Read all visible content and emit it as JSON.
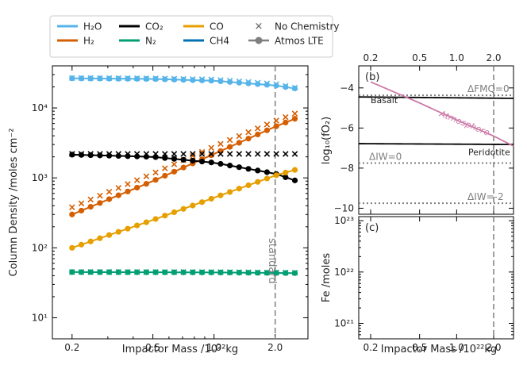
{
  "colors": {
    "H2O": "#56b4e9",
    "H2": "#d55e00",
    "CO2": "#000000",
    "N2": "#009e73",
    "CO": "#e69f00",
    "CH4": "#0072b2",
    "gray": "#7f7f7f",
    "atmos": "#cc79a7"
  },
  "legend": {
    "entries": [
      {
        "key": "H2O",
        "label": "H₂O",
        "kind": "line"
      },
      {
        "key": "H2",
        "label": "H₂",
        "kind": "line"
      },
      {
        "key": "CO2",
        "label": "CO₂",
        "kind": "line"
      },
      {
        "key": "N2",
        "label": "N₂",
        "kind": "line"
      },
      {
        "key": "CO",
        "label": "CO",
        "kind": "line"
      },
      {
        "key": "CH4",
        "label": "CH4",
        "kind": "line"
      },
      {
        "key": "nochem",
        "label": "No Chemistry",
        "kind": "cross"
      },
      {
        "key": "lte",
        "label": "Atmos LTE",
        "kind": "dotline"
      }
    ]
  },
  "chart_data": [
    {
      "id": "main",
      "type": "scatter",
      "xscale": "log",
      "yscale": "log",
      "xlabel": "Impactor Mass /10²²kg",
      "ylabel": "Column Density /moles cm⁻²",
      "xlim": [
        0.16,
        2.9
      ],
      "ylim": [
        5,
        40000
      ],
      "xticks": [
        0.2,
        0.5,
        1.0,
        2.0
      ],
      "xticklabels": [
        "0.2",
        "0.5",
        "1.0",
        "2.0"
      ],
      "yticks": [
        10,
        100,
        1000,
        10000
      ],
      "yticklabels": [
        "10¹",
        "10²",
        "10³",
        "10⁴"
      ],
      "vline": {
        "x": 2.0,
        "label": "standard"
      },
      "n_points": 25,
      "x_range": [
        0.2,
        2.5
      ],
      "series": [
        {
          "name": "H2O",
          "lte_anchors": [
            [
              0.2,
              26500
            ],
            [
              0.5,
              26000
            ],
            [
              1.0,
              24500
            ],
            [
              2.0,
              21000
            ],
            [
              2.5,
              19000
            ]
          ],
          "nochem_anchors": [
            [
              0.2,
              26800
            ],
            [
              0.5,
              26500
            ],
            [
              1.0,
              25500
            ],
            [
              2.0,
              22000
            ],
            [
              2.5,
              19500
            ]
          ]
        },
        {
          "name": "H2",
          "lte_anchors": [
            [
              0.2,
              300
            ],
            [
              0.5,
              900
            ],
            [
              1.0,
              2200
            ],
            [
              2.0,
              5400
            ],
            [
              2.5,
              7000
            ]
          ],
          "nochem_anchors": [
            [
              0.2,
              380
            ],
            [
              0.5,
              1150
            ],
            [
              1.0,
              2800
            ],
            [
              2.0,
              6500
            ],
            [
              2.5,
              8300
            ]
          ]
        },
        {
          "name": "CO2",
          "lte_anchors": [
            [
              0.2,
              2150
            ],
            [
              0.5,
              2000
            ],
            [
              1.0,
              1650
            ],
            [
              2.0,
              1150
            ],
            [
              2.5,
              920
            ]
          ],
          "nochem_anchors": [
            [
              0.2,
              2200
            ],
            [
              1.0,
              2200
            ],
            [
              2.5,
              2200
            ]
          ]
        },
        {
          "name": "CO",
          "lte_anchors": [
            [
              0.2,
              100
            ],
            [
              0.5,
              250
            ],
            [
              1.0,
              520
            ],
            [
              2.0,
              1080
            ],
            [
              2.5,
              1300
            ]
          ]
        },
        {
          "name": "N2",
          "lte_anchors": [
            [
              0.2,
              45
            ],
            [
              1.0,
              44.5
            ],
            [
              2.5,
              43.5
            ]
          ],
          "nochem_anchors": [
            [
              0.2,
              45
            ],
            [
              1.0,
              45
            ],
            [
              2.5,
              44
            ]
          ]
        }
      ]
    },
    {
      "id": "fo2",
      "type": "line",
      "label": "(b)",
      "xscale": "log",
      "xlim": [
        0.16,
        2.9
      ],
      "ylim": [
        -10.3,
        -2.9
      ],
      "ylabel": "log₁₀(fO₂)",
      "yticks": [
        -4,
        -6,
        -8,
        -10
      ],
      "yticklabels": [
        "−4",
        "−6",
        "−8",
        "−10"
      ],
      "xticks": [
        0.2,
        0.5,
        1.0,
        2.0
      ],
      "xticklabels": [
        "0.2",
        "0.5",
        "1.0",
        "2.0"
      ],
      "vline": {
        "x": 2.0
      },
      "lines": [
        {
          "name": "Basalt",
          "anchors": [
            [
              0.16,
              -4.45
            ],
            [
              2.9,
              -4.52
            ]
          ]
        },
        {
          "name": "Peridotite",
          "anchors": [
            [
              0.16,
              -6.78
            ],
            [
              2.9,
              -6.82
            ]
          ]
        },
        {
          "name": "Atmosphere",
          "anchors": [
            [
              0.2,
              -3.7
            ],
            [
              0.5,
              -4.75
            ],
            [
              1.0,
              -5.6
            ],
            [
              2.0,
              -6.4
            ],
            [
              2.9,
              -6.9
            ]
          ]
        }
      ],
      "buffers": [
        {
          "name": "ΔFMQ=0",
          "y": -4.37
        },
        {
          "name": "ΔIW=0",
          "y": -7.75
        },
        {
          "name": "ΔIW=-2",
          "y": -9.75
        }
      ]
    },
    {
      "id": "fe",
      "type": "scatter",
      "label": "(c)",
      "xscale": "log",
      "yscale": "log",
      "xlim": [
        0.16,
        2.9
      ],
      "ylim": [
        5e+20,
        1.2e+23
      ],
      "xlabel": "Impactor Mass /10²²kg",
      "ylabel": "Fe /moles",
      "yticks": [
        1e+21,
        1e+22,
        1e+23
      ],
      "yticklabels": [
        "10²¹",
        "10²²",
        "10²³"
      ],
      "xticks": [
        0.2,
        0.5,
        1.0,
        2.0
      ],
      "xticklabels": [
        "0.2",
        "0.5",
        "1.0",
        "2.0"
      ],
      "vline": {
        "x": 2.0
      },
      "series": []
    }
  ]
}
